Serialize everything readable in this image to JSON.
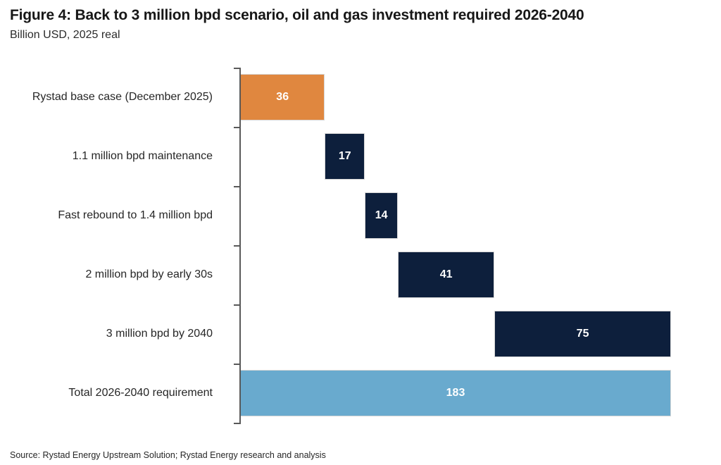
{
  "figure": {
    "title": "Figure 4: Back to 3 million bpd scenario, oil and gas investment required 2026-2040",
    "subtitle": "Billion USD, 2025 real",
    "source": "Source: Rystad Energy Upstream Solution; Rystad Energy research and analysis"
  },
  "chart_data": {
    "type": "bar",
    "subtype": "horizontal_waterfall",
    "title": "Figure 4: Back to 3 million bpd scenario, oil and gas investment required 2026-2040",
    "subtitle": "Billion USD, 2025 real",
    "unit": "Billion USD, 2025 real",
    "categories": [
      "Rystad base case (December 2025)",
      "1.1 million bpd maintenance",
      "Fast rebound to 1.4 million bpd",
      "2 million bpd by early 30s",
      "3 million bpd by 2040",
      "Total 2026-2040 requirement"
    ],
    "values": [
      36,
      17,
      14,
      41,
      75,
      183
    ],
    "starts": [
      0,
      36,
      53,
      67,
      108,
      0
    ],
    "is_total": [
      false,
      false,
      false,
      false,
      false,
      true
    ],
    "xlim": [
      0,
      183
    ],
    "grid": false,
    "legend_position": "none",
    "value_labels_shown": true,
    "colors": {
      "base_case": "#E0873F",
      "increment": "#0D1F3C",
      "total": "#69AACE",
      "value_label": "#FFFFFF",
      "axis": "#595959"
    },
    "bar_color_roles": [
      "base_case",
      "increment",
      "increment",
      "increment",
      "increment",
      "total"
    ]
  }
}
